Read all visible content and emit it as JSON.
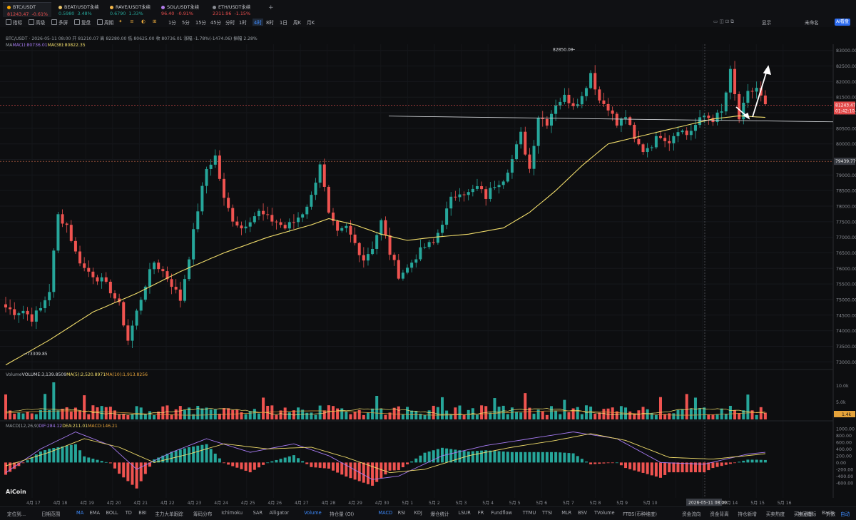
{
  "tabs": [
    {
      "symbol": "BTC/USDT",
      "price": "81243.47",
      "change": "-0.61%",
      "color": "#f0504f",
      "dot": "#f7a600",
      "active": true
    },
    {
      "symbol": "BEAT/USDT永续",
      "price": "0.5980",
      "change": "3.48%",
      "color": "#26a69a",
      "dot": "#e8c26a"
    },
    {
      "symbol": "RAVE/USDT永续",
      "price": "0.6790",
      "change": "1.33%",
      "color": "#26a69a",
      "dot": "#f3b64a"
    },
    {
      "symbol": "SOL/USDT永续",
      "price": "96.40",
      "change": "-0.91%",
      "color": "#f0504f",
      "dot": "#b07be8"
    },
    {
      "symbol": "ETH/USDT永续",
      "price": "2311.96",
      "change": "-1.15%",
      "color": "#f0504f",
      "dot": "#8a8d94"
    }
  ],
  "tab_add": "+",
  "toolbar": {
    "left": [
      "指标",
      "高级",
      "多屏",
      "复盘",
      "周期"
    ],
    "intervals": [
      "1分",
      "5分",
      "15分",
      "45分",
      "分时",
      "1时",
      "4时",
      "8时",
      "1日",
      "周K",
      "月K"
    ],
    "selected_interval": "4时",
    "display": "显示",
    "account": "未命名",
    "ai": "AI看盘"
  },
  "legend": {
    "line1": "BTC/USDT · 2026-05-11 08:00 开 81210.07 高 82280.00 低 80625.00 收 80736.01 涨幅 -1.78%(-1474.06) 振幅 2.28%",
    "ma_label": "MA",
    "ma1": "MA(1):80736.01",
    "ma2": "MA(38):80822.35",
    "vol_label": "Volume",
    "vol1": "VOLUME:3,139.8509",
    "vol2": "MA(5):2,520.8971",
    "vol3": "MA(10):1,913.8256",
    "macd_label": "MACD(12,26,9)",
    "macd1": "DIF:284.12",
    "macd2": "DEA:211.01",
    "macd3": "MACD:146.21"
  },
  "annotations": {
    "high": "82850.00",
    "low": "73309.85",
    "last_price": "81243.47",
    "countdown": "01:42:10",
    "cross_price": "79439.77",
    "cross_date": "2026-05-11 08:00",
    "vol_last": "1.4k"
  },
  "bottom": {
    "left": [
      "定位到...",
      "日期范围"
    ],
    "indicators": [
      "MA",
      "EMA",
      "BOLL",
      "TD",
      "BBI",
      "主力大单跟踪",
      "筹码分布",
      "Ichimoku",
      "SAR",
      "Alligator",
      "Volume",
      "持仓量 (OI)",
      "MACD",
      "RSI",
      "KDJ",
      "爆仓统计",
      "LSUR",
      "FR",
      "Fundflow",
      "TTMU",
      "TTSI",
      "MLR",
      "BSV",
      "TVolume",
      "FTBS(币种维度)",
      "资金流向",
      "资金背离",
      "持仓新增",
      "买卖热度",
      "买卖意愿",
      "Basis"
    ],
    "active_indicators": [
      "MA",
      "Volume",
      "MACD"
    ],
    "right": [
      "社区指标",
      "对数",
      "自动"
    ]
  },
  "logo": "AiCoin",
  "chart_data": {
    "type": "candlestick",
    "interval": "4时",
    "y_ticks": [
      73000,
      73500,
      74000,
      74500,
      75000,
      75500,
      76000,
      76500,
      77000,
      77500,
      78000,
      78500,
      79000,
      79500,
      80000,
      80500,
      81000,
      81500,
      82000,
      82500,
      83000
    ],
    "x_ticks": [
      "4月 17",
      "4月 18",
      "4月 19",
      "4月 20",
      "4月 21",
      "4月 22",
      "4月 23",
      "4月 24",
      "4月 25",
      "4月 26",
      "4月 27",
      "4月 28",
      "4月 29",
      "4月 30",
      "5月 1",
      "5月 2",
      "5月 3",
      "5月 4",
      "5月 5",
      "5月 6",
      "5月 7",
      "5月 8",
      "5月 9",
      "5月 10",
      "12",
      "5月 13",
      "5月 14",
      "5月 15",
      "5月 16"
    ],
    "close_path": [
      [
        0,
        74750
      ],
      [
        2,
        74600
      ],
      [
        4,
        74650
      ],
      [
        6,
        74400
      ],
      [
        8,
        74700
      ],
      [
        10,
        75300
      ],
      [
        12,
        77700
      ],
      [
        14,
        77400
      ],
      [
        16,
        76500
      ],
      [
        18,
        76000
      ],
      [
        20,
        75800
      ],
      [
        22,
        75600
      ],
      [
        24,
        75300
      ],
      [
        26,
        74800
      ],
      [
        28,
        73700
      ],
      [
        30,
        74600
      ],
      [
        32,
        75500
      ],
      [
        34,
        76200
      ],
      [
        36,
        75900
      ],
      [
        38,
        75500
      ],
      [
        40,
        75000
      ],
      [
        42,
        76400
      ],
      [
        44,
        77900
      ],
      [
        46,
        79200
      ],
      [
        48,
        79600
      ],
      [
        50,
        78200
      ],
      [
        52,
        77600
      ],
      [
        54,
        77300
      ],
      [
        56,
        77600
      ],
      [
        58,
        77800
      ],
      [
        60,
        77600
      ],
      [
        62,
        77500
      ],
      [
        64,
        77300
      ],
      [
        66,
        77500
      ],
      [
        68,
        77800
      ],
      [
        70,
        78300
      ],
      [
        72,
        79400
      ],
      [
        74,
        77700
      ],
      [
        76,
        77100
      ],
      [
        78,
        77300
      ],
      [
        80,
        76800
      ],
      [
        82,
        76300
      ],
      [
        84,
        76700
      ],
      [
        86,
        77500
      ],
      [
        88,
        76500
      ],
      [
        90,
        75800
      ],
      [
        92,
        76000
      ],
      [
        94,
        76400
      ],
      [
        96,
        76700
      ],
      [
        98,
        76800
      ],
      [
        100,
        77500
      ],
      [
        102,
        78200
      ],
      [
        104,
        78500
      ],
      [
        106,
        78400
      ],
      [
        108,
        78600
      ],
      [
        110,
        78300
      ],
      [
        112,
        78700
      ],
      [
        114,
        78900
      ],
      [
        116,
        79500
      ],
      [
        118,
        80300
      ],
      [
        120,
        79200
      ],
      [
        122,
        80900
      ],
      [
        124,
        80700
      ],
      [
        126,
        81300
      ],
      [
        128,
        81500
      ],
      [
        130,
        81300
      ],
      [
        132,
        81500
      ],
      [
        134,
        82300
      ],
      [
        136,
        81400
      ],
      [
        138,
        81200
      ],
      [
        140,
        80600
      ],
      [
        142,
        80900
      ],
      [
        144,
        80100
      ],
      [
        146,
        79800
      ],
      [
        148,
        80000
      ],
      [
        150,
        80300
      ],
      [
        152,
        80100
      ],
      [
        154,
        80500
      ],
      [
        156,
        80300
      ],
      [
        158,
        80600
      ],
      [
        160,
        80900
      ],
      [
        162,
        80800
      ],
      [
        164,
        81000
      ],
      [
        166,
        82300
      ],
      [
        168,
        80800
      ],
      [
        170,
        81600
      ],
      [
        172,
        81800
      ],
      [
        174,
        81200
      ]
    ],
    "ma_path": [
      [
        0,
        72900
      ],
      [
        10,
        73700
      ],
      [
        20,
        74600
      ],
      [
        30,
        75200
      ],
      [
        40,
        75900
      ],
      [
        50,
        76500
      ],
      [
        60,
        77000
      ],
      [
        70,
        77400
      ],
      [
        74,
        77600
      ],
      [
        80,
        77400
      ],
      [
        86,
        77100
      ],
      [
        92,
        76900
      ],
      [
        98,
        77000
      ],
      [
        106,
        77100
      ],
      [
        114,
        77300
      ],
      [
        120,
        77800
      ],
      [
        126,
        78500
      ],
      [
        132,
        79300
      ],
      [
        138,
        80000
      ],
      [
        144,
        80200
      ],
      [
        150,
        80400
      ],
      [
        156,
        80600
      ],
      [
        162,
        80800
      ],
      [
        168,
        80900
      ],
      [
        174,
        80850
      ]
    ],
    "support_level": 80800,
    "macd": {
      "dif_path": [
        [
          0,
          -300
        ],
        [
          8,
          400
        ],
        [
          16,
          900
        ],
        [
          24,
          500
        ],
        [
          30,
          -200
        ],
        [
          38,
          300
        ],
        [
          46,
          700
        ],
        [
          56,
          300
        ],
        [
          66,
          550
        ],
        [
          74,
          200
        ],
        [
          84,
          -500
        ],
        [
          90,
          -400
        ],
        [
          100,
          200
        ],
        [
          110,
          500
        ],
        [
          120,
          700
        ],
        [
          130,
          900
        ],
        [
          140,
          700
        ],
        [
          150,
          0
        ],
        [
          160,
          -50
        ],
        [
          170,
          250
        ],
        [
          174,
          300
        ]
      ],
      "dea_path": [
        [
          0,
          -100
        ],
        [
          10,
          300
        ],
        [
          18,
          700
        ],
        [
          26,
          450
        ],
        [
          34,
          0
        ],
        [
          42,
          250
        ],
        [
          50,
          550
        ],
        [
          60,
          400
        ],
        [
          70,
          450
        ],
        [
          78,
          150
        ],
        [
          88,
          -300
        ],
        [
          96,
          -200
        ],
        [
          106,
          200
        ],
        [
          116,
          450
        ],
        [
          126,
          650
        ],
        [
          134,
          850
        ],
        [
          142,
          650
        ],
        [
          152,
          150
        ],
        [
          162,
          100
        ],
        [
          172,
          230
        ],
        [
          174,
          260
        ]
      ]
    }
  }
}
